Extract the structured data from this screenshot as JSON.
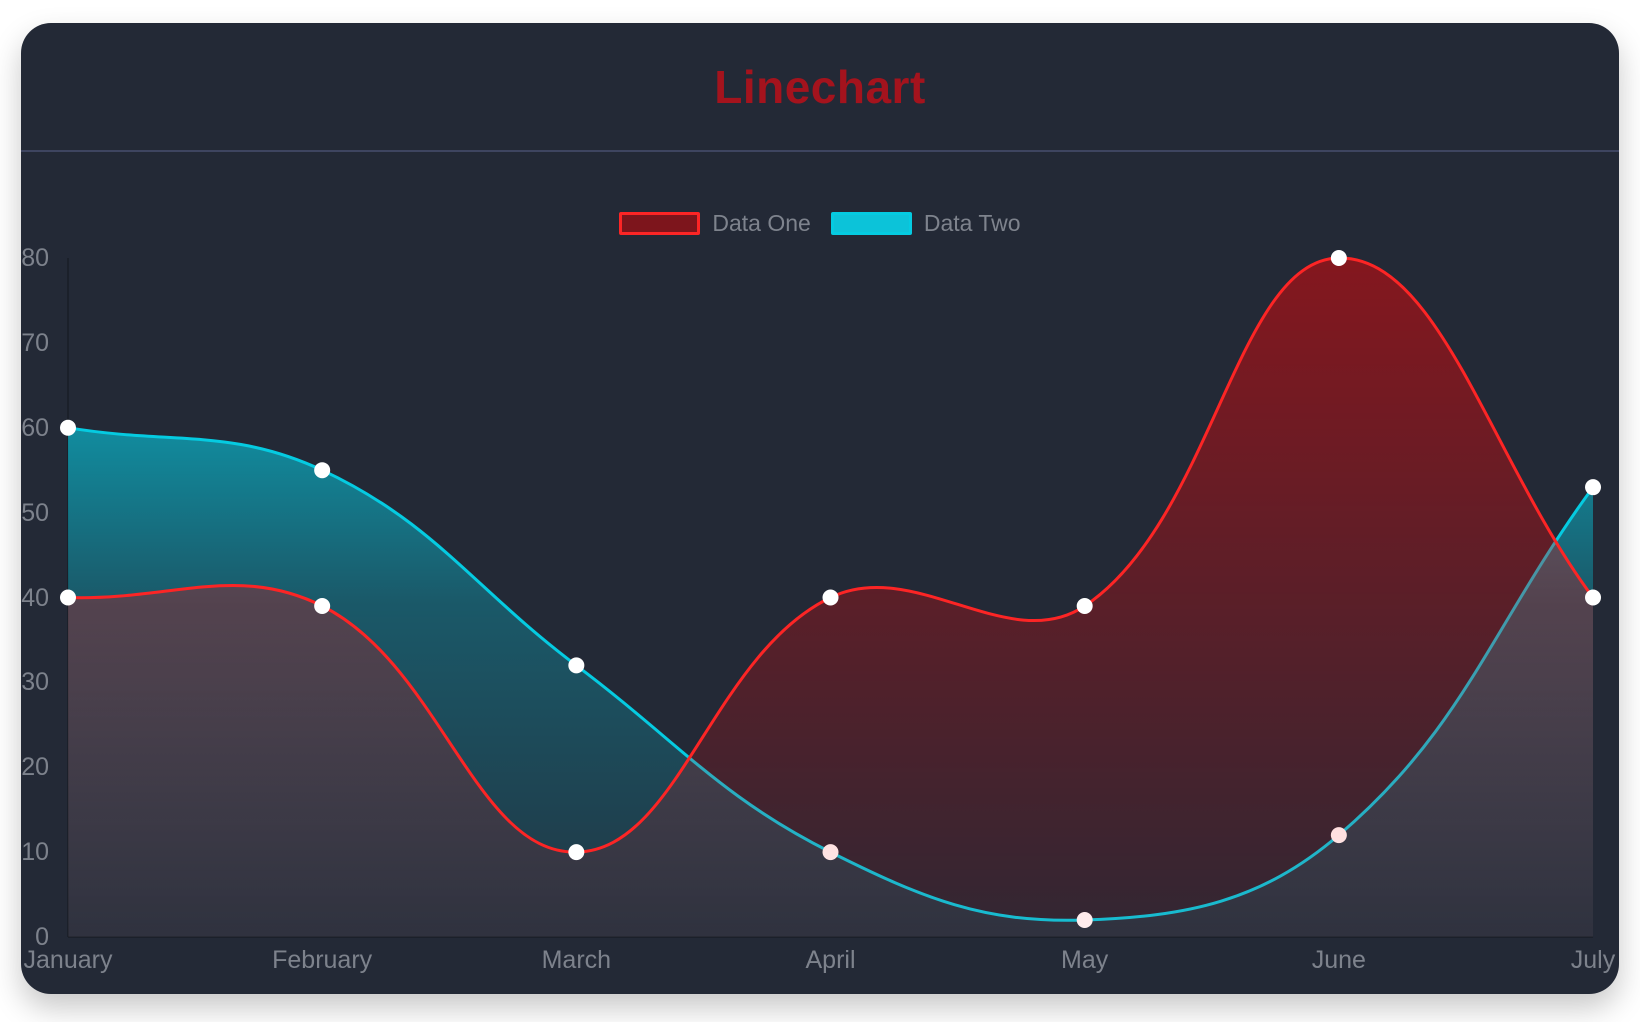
{
  "window": {
    "page_background": "#ffffff",
    "card_background": "#232936",
    "divider_color": "#3e4560"
  },
  "header": {
    "title": "Linechart",
    "title_color": "#a4131d"
  },
  "legend": {
    "position": "top",
    "items": [
      {
        "label": "Data One",
        "box_fill": "#7d151c",
        "box_border": "#fc2525"
      },
      {
        "label": "Data Two",
        "box_fill": "#0cc3d9",
        "box_border": "#05cbe1"
      }
    ],
    "label_color": "#7e838d"
  },
  "chart_data": {
    "type": "line",
    "title": "Linechart",
    "x": [
      "January",
      "February",
      "March",
      "April",
      "May",
      "June",
      "July"
    ],
    "series": [
      {
        "name": "Data One",
        "values": [
          40,
          39,
          10,
          40,
          39,
          80,
          40
        ],
        "line_color": "#fc2525",
        "fill_stops": [
          [
            0,
            "rgba(255,0,0,0.5)"
          ],
          [
            0.5,
            "rgba(255,0,0,0.25)"
          ],
          [
            1,
            "rgba(255,0,0,0)"
          ]
        ]
      },
      {
        "name": "Data Two",
        "values": [
          60,
          55,
          32,
          10,
          2,
          12,
          53
        ],
        "line_color": "#05cbe1",
        "fill_stops": [
          [
            0,
            "rgba(0,231,255,0.95)"
          ],
          [
            0.5,
            "rgba(0,231,255,0.25)"
          ],
          [
            1,
            "rgba(0,231,255,0)"
          ]
        ]
      }
    ],
    "ylim": [
      0,
      80
    ],
    "yticks": [
      0,
      10,
      20,
      30,
      40,
      50,
      60,
      70,
      80
    ],
    "grid": false,
    "curve": "bezier-tension-0.4",
    "point_fill": "#ffffff",
    "point_radius": 8,
    "line_width": 3,
    "axis_color": "rgba(0,0,0,0.22)",
    "tick_color": "#7d828c",
    "legend_position": "top"
  }
}
